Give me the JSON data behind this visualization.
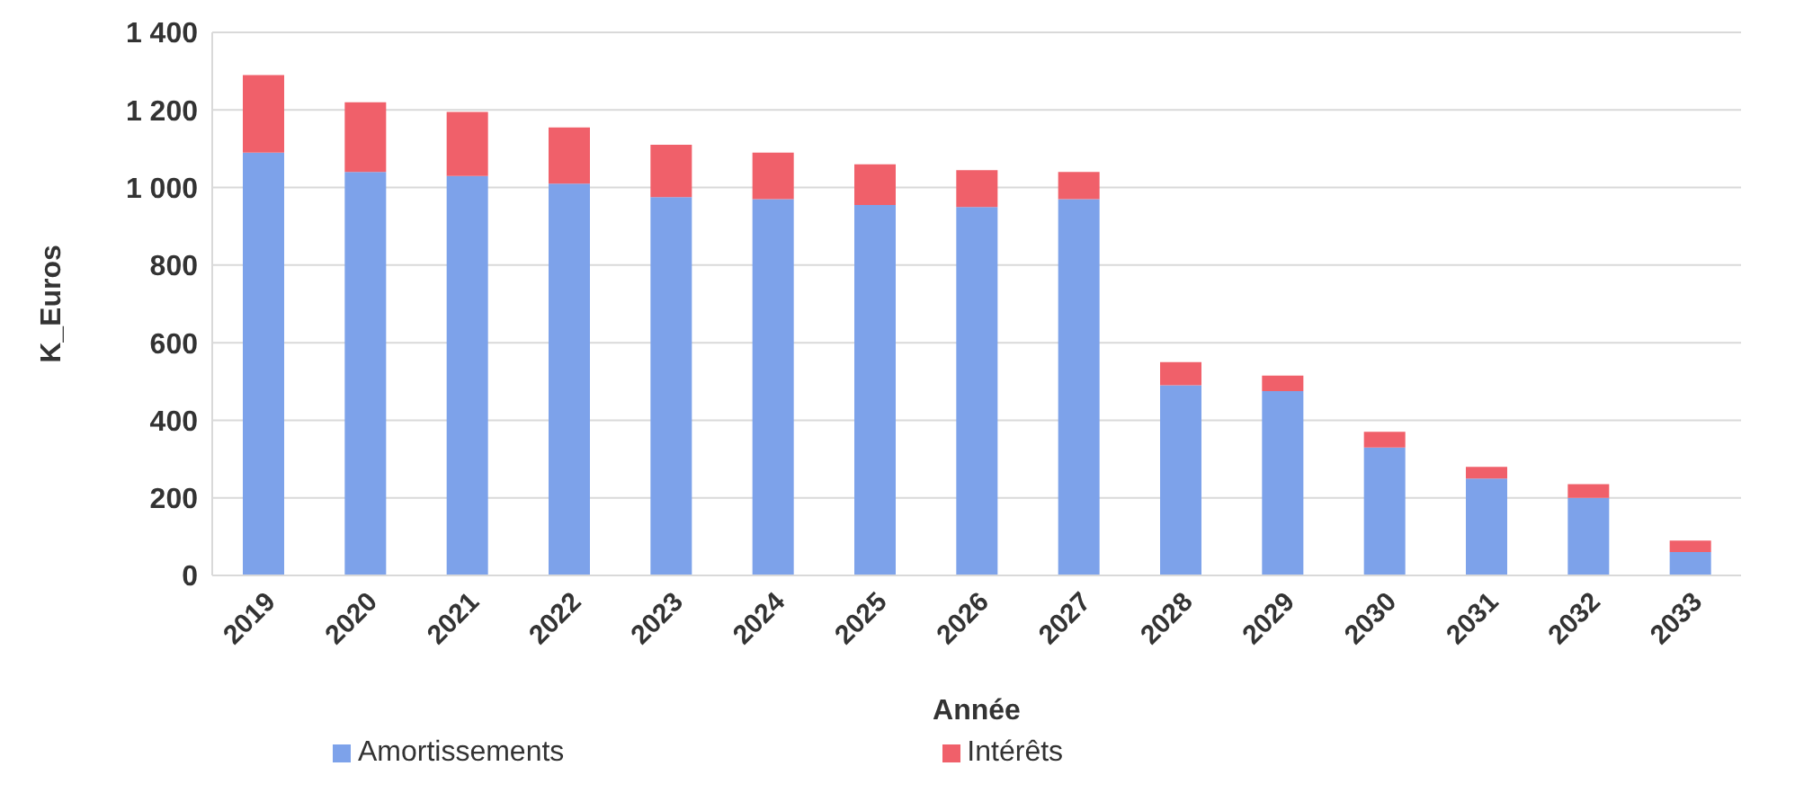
{
  "chart_data": {
    "type": "bar",
    "stacked": true,
    "xlabel": "Année",
    "ylabel": "K_Euros",
    "categories": [
      "2019",
      "2020",
      "2021",
      "2022",
      "2023",
      "2024",
      "2025",
      "2026",
      "2027",
      "2028",
      "2029",
      "2030",
      "2031",
      "2032",
      "2033"
    ],
    "series": [
      {
        "name": "Amortissements",
        "color": "#7da2ea",
        "values": [
          1090,
          1040,
          1030,
          1010,
          975,
          970,
          955,
          950,
          970,
          490,
          475,
          330,
          250,
          200,
          60
        ]
      },
      {
        "name": "Intérêts",
        "color": "#f0606a",
        "values": [
          200,
          180,
          165,
          145,
          135,
          120,
          105,
          95,
          70,
          60,
          40,
          40,
          30,
          35,
          30
        ]
      }
    ],
    "ylim": [
      0,
      1400
    ],
    "yticks": [
      0,
      200,
      400,
      600,
      800,
      {
        "value": 1000,
        "label": "1 000"
      },
      {
        "value": 1200,
        "label": "1 200"
      },
      {
        "value": 1400,
        "label": "1 400"
      }
    ],
    "grid": "y",
    "legend": "bottom"
  }
}
